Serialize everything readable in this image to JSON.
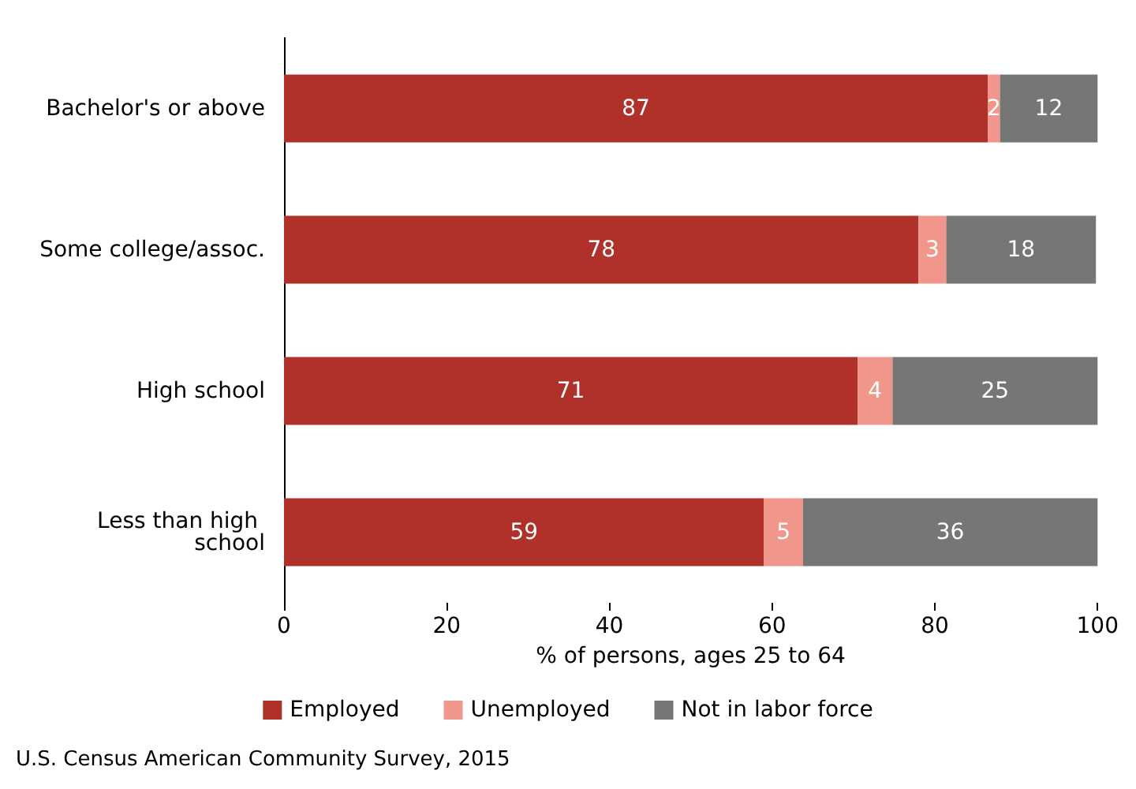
{
  "chart_data": {
    "type": "bar",
    "orientation": "horizontal",
    "stacked": true,
    "categories": [
      "Bachelor's or above",
      "Some college/assoc.",
      "High school",
      "Less than high school"
    ],
    "series": [
      {
        "name": "Employed",
        "color": "#b0302a",
        "values": [
          86.5,
          78,
          70.5,
          59
        ],
        "value_labels": [
          "87",
          "78",
          "71",
          "59"
        ]
      },
      {
        "name": "Unemployed",
        "color": "#f0968b",
        "values": [
          1.5,
          3.4,
          4.3,
          4.8
        ],
        "value_labels": [
          "2",
          "3",
          "4",
          "5"
        ]
      },
      {
        "name": "Not in labor force",
        "color": "#767676",
        "values": [
          12,
          18.4,
          25.2,
          36.2
        ],
        "value_labels": [
          "12",
          "18",
          "25",
          "36"
        ]
      }
    ],
    "xlim": [
      0,
      100
    ],
    "xticks": [
      0,
      20,
      40,
      60,
      80,
      100
    ],
    "xlabel": "% of persons, ages 25 to 64",
    "grid": false,
    "legend": "bottom",
    "annotations": [
      "U.S. Census American Community Survey, 2015"
    ]
  }
}
